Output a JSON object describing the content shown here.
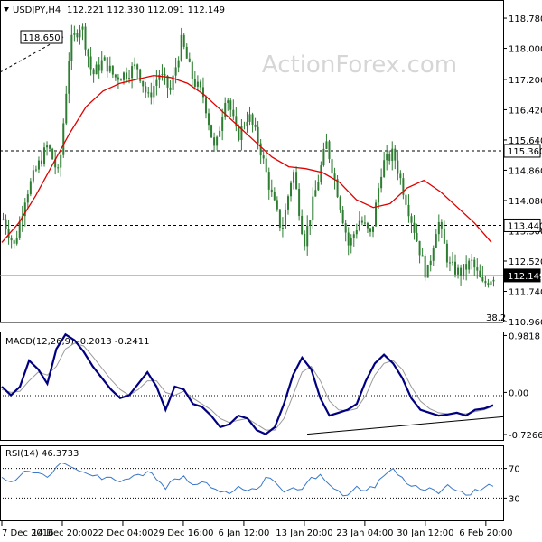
{
  "symbol_header": "USDJPY,H4",
  "ohlc_header": "112.221 112.330 112.091 112.149",
  "watermark": "ActionForex.com",
  "colors": {
    "candle": "#2e7d32",
    "ma": "#e00000",
    "macd": "#000080",
    "macd_signal": "#9a9a9a",
    "rsi": "#3a78c8",
    "current_price_box": "#000000"
  },
  "chart_data": [
    {
      "type": "candlestick",
      "title": "USDJPY,H4",
      "ylim": [
        110.96,
        119.2
      ],
      "y_ticks": [
        "118.780",
        "118.000",
        "117.200",
        "116.420",
        "115.640",
        "114.860",
        "114.080",
        "113.300",
        "112.520",
        "111.740",
        "110.960"
      ],
      "x_ticks": [
        "7 Dec 2016",
        "14 Dec 20:00",
        "22 Dec 04:00",
        "29 Dec 16:00",
        "6 Jan 12:00",
        "13 Jan 20:00",
        "23 Jan 04:00",
        "30 Jan 12:00",
        "6 Feb 20:00"
      ],
      "price_path": [
        113.6,
        112.9,
        114.2,
        114.9,
        115.5,
        114.7,
        118.1,
        118.65,
        117.3,
        117.7,
        117.25,
        117.35,
        117.55,
        116.7,
        117.35,
        116.9,
        118.2,
        117.2,
        116.75,
        115.3,
        116.9,
        115.7,
        116.3,
        115.5,
        114.3,
        113.3,
        114.9,
        113.0,
        114.3,
        115.55,
        114.3,
        112.9,
        113.6,
        113.15,
        115.0,
        115.3,
        114.25,
        113.2,
        112.1,
        113.6,
        112.4,
        112.2,
        112.5,
        111.9,
        112.15
      ],
      "ma_path": [
        113.0,
        113.5,
        114.2,
        115.0,
        115.8,
        116.5,
        116.9,
        117.1,
        117.2,
        117.3,
        117.25,
        117.1,
        116.8,
        116.4,
        116.0,
        115.6,
        115.2,
        114.95,
        114.9,
        114.8,
        114.55,
        114.1,
        113.9,
        114.0,
        114.4,
        114.6,
        114.3,
        113.9,
        113.5,
        113.0
      ],
      "horizontal_lines": [
        "118.650",
        "115.360",
        "113.440",
        "112.149"
      ],
      "annotations": [
        "38.2"
      ]
    },
    {
      "type": "line",
      "title": "MACD(12,26,9) -0.2013 -0.2411",
      "ylim": [
        -0.82,
        1.02
      ],
      "y_ticks": [
        "0.9818",
        "0.00",
        "-0.7266"
      ],
      "series": [
        {
          "name": "MACD",
          "values": [
            0.1,
            -0.05,
            0.1,
            0.55,
            0.4,
            0.15,
            0.75,
            1.0,
            0.9,
            0.7,
            0.45,
            0.25,
            0.05,
            -0.1,
            -0.05,
            0.15,
            0.35,
            0.1,
            -0.3,
            0.1,
            0.05,
            -0.2,
            -0.25,
            -0.4,
            -0.6,
            -0.55,
            -0.4,
            -0.45,
            -0.65,
            -0.72,
            -0.6,
            -0.2,
            0.3,
            0.6,
            0.4,
            -0.1,
            -0.4,
            -0.35,
            -0.3,
            -0.2,
            0.2,
            0.5,
            0.65,
            0.5,
            0.25,
            -0.1,
            -0.3,
            -0.35,
            -0.4,
            -0.38,
            -0.35,
            -0.4,
            -0.3,
            -0.28,
            -0.22
          ]
        },
        {
          "name": "Signal",
          "values": [
            0.05,
            0.0,
            0.02,
            0.2,
            0.35,
            0.3,
            0.45,
            0.75,
            0.85,
            0.8,
            0.62,
            0.42,
            0.22,
            0.05,
            -0.05,
            0.05,
            0.2,
            0.2,
            0.0,
            -0.05,
            0.02,
            -0.1,
            -0.2,
            -0.3,
            -0.45,
            -0.52,
            -0.48,
            -0.45,
            -0.55,
            -0.65,
            -0.65,
            -0.45,
            -0.05,
            0.35,
            0.45,
            0.2,
            -0.15,
            -0.3,
            -0.32,
            -0.28,
            -0.05,
            0.3,
            0.5,
            0.55,
            0.4,
            0.1,
            -0.15,
            -0.28,
            -0.35,
            -0.37,
            -0.36,
            -0.37,
            -0.33,
            -0.3,
            -0.24
          ]
        }
      ],
      "trendline": [
        -0.72,
        -0.42
      ]
    },
    {
      "type": "line",
      "title": "RSI(14) 46.3733",
      "ylim": [
        0,
        100
      ],
      "y_ticks": [
        "70",
        "30"
      ],
      "levels": [
        70,
        30
      ],
      "values": [
        58,
        52,
        60,
        66,
        64,
        58,
        72,
        76,
        70,
        65,
        60,
        55,
        58,
        52,
        56,
        62,
        66,
        55,
        42,
        56,
        60,
        48,
        52,
        44,
        38,
        36,
        46,
        40,
        42,
        58,
        52,
        38,
        44,
        42,
        58,
        62,
        48,
        40,
        34,
        46,
        40,
        44,
        60,
        70,
        58,
        46,
        42,
        44,
        36,
        48,
        40,
        34,
        42,
        44,
        46
      ]
    }
  ]
}
